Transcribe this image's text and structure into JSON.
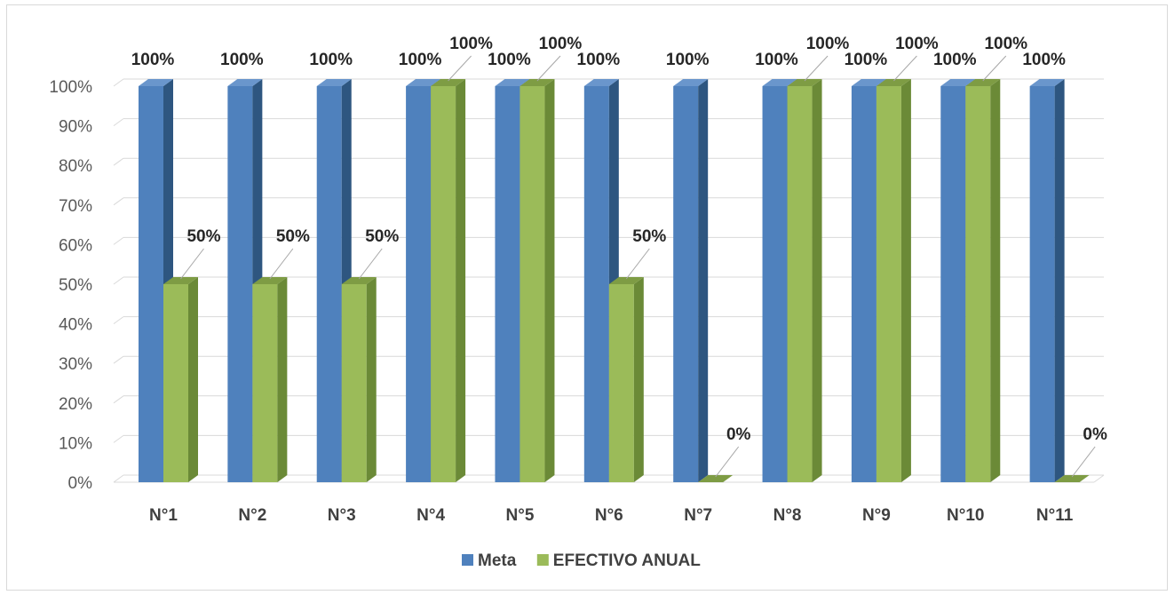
{
  "chart_data": {
    "type": "bar",
    "title": "",
    "xlabel": "",
    "ylabel": "",
    "categories": [
      "N°1",
      "N°2",
      "N°3",
      "N°4",
      "N°5",
      "N°6",
      "N°7",
      "N°8",
      "N°9",
      "N°10",
      "N°11"
    ],
    "series": [
      {
        "name": "Meta",
        "values": [
          100,
          100,
          100,
          100,
          100,
          100,
          100,
          100,
          100,
          100,
          100
        ],
        "labels": [
          "100%",
          "100%",
          "100%",
          "100%",
          "100%",
          "100%",
          "100%",
          "100%",
          "100%",
          "100%",
          "100%"
        ],
        "color": "#4f81bd",
        "side_color": "#2e5680",
        "top_color": "#6a96cc"
      },
      {
        "name": "EFECTIVO ANUAL",
        "values": [
          50,
          50,
          50,
          100,
          100,
          50,
          0,
          100,
          100,
          100,
          0
        ],
        "labels": [
          "50%",
          "50%",
          "50%",
          "100%",
          "100%",
          "50%",
          "0%",
          "100%",
          "100%",
          "100%",
          "0%"
        ],
        "color": "#9bbb59",
        "side_color": "#6b8a37",
        "top_color": "#7e9c44"
      }
    ],
    "ylim": [
      0,
      100
    ],
    "yticks": [
      "0%",
      "10%",
      "20%",
      "30%",
      "40%",
      "50%",
      "60%",
      "70%",
      "80%",
      "90%",
      "100%"
    ],
    "grid": true,
    "legend": "bottom",
    "three_d": true
  }
}
